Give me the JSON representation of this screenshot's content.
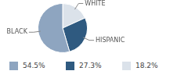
{
  "chart_data": {
    "type": "pie",
    "categories": [
      "BLACK",
      "HISPANIC",
      "WHITE"
    ],
    "values": [
      54.5,
      27.3,
      18.2
    ],
    "value_labels": [
      "54.5%",
      "27.3%",
      "18.2%"
    ],
    "colors": [
      "#8ea5c0",
      "#2f5a80",
      "#dbe2ea"
    ],
    "legend": "bottom"
  }
}
